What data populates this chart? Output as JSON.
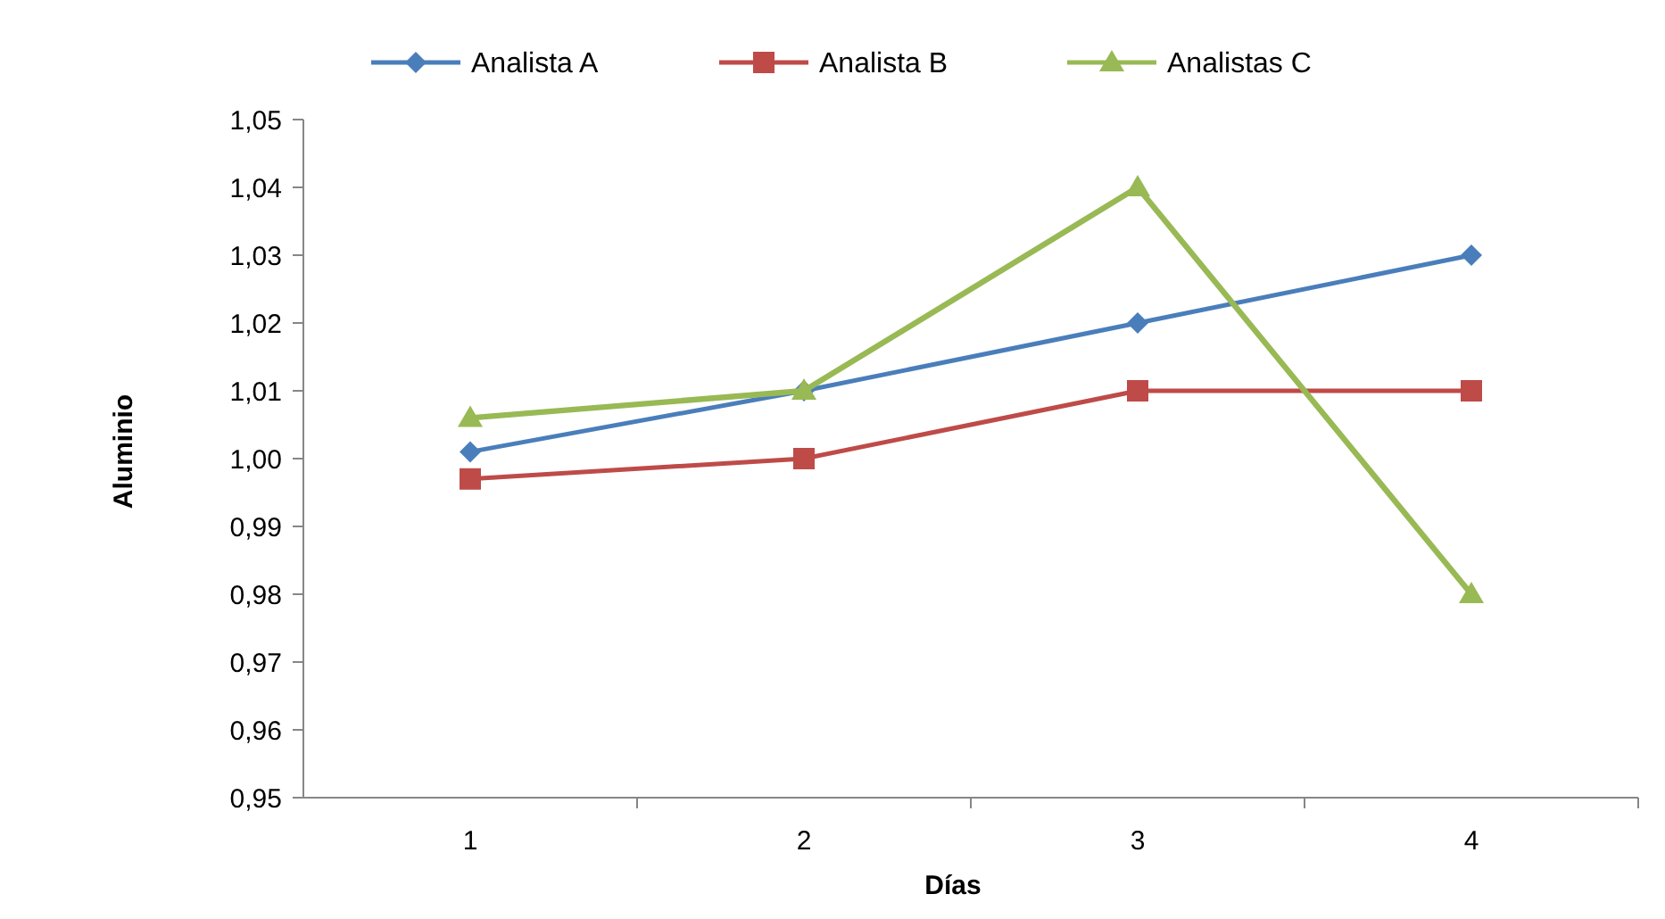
{
  "chart_data": {
    "type": "line",
    "xlabel": "Días",
    "ylabel": "Aluminio",
    "categories": [
      "1",
      "2",
      "3",
      "4"
    ],
    "series": [
      {
        "name": "Analista A",
        "color": "#4a7ebb",
        "marker": "diamond",
        "values": [
          1.001,
          1.01,
          1.02,
          1.03
        ]
      },
      {
        "name": "Analista B",
        "color": "#be4b48",
        "marker": "square",
        "values": [
          0.997,
          1.0,
          1.01,
          1.01
        ]
      },
      {
        "name": "Analistas C",
        "color": "#98b954",
        "marker": "triangle",
        "values": [
          1.006,
          1.01,
          1.04,
          0.98
        ]
      }
    ],
    "ylim": [
      0.95,
      1.05
    ],
    "yticks": [
      {
        "value": 0.95,
        "label": "0,95"
      },
      {
        "value": 0.96,
        "label": "0,96"
      },
      {
        "value": 0.97,
        "label": "0,97"
      },
      {
        "value": 0.98,
        "label": "0,98"
      },
      {
        "value": 0.99,
        "label": "0,99"
      },
      {
        "value": 1.0,
        "label": "1,00"
      },
      {
        "value": 1.01,
        "label": "1,01"
      },
      {
        "value": 1.02,
        "label": "1,02"
      },
      {
        "value": 1.03,
        "label": "1,03"
      },
      {
        "value": 1.04,
        "label": "1,04"
      },
      {
        "value": 1.05,
        "label": "1,05"
      }
    ],
    "grid": false,
    "legend": "top",
    "line_style": "solid"
  }
}
